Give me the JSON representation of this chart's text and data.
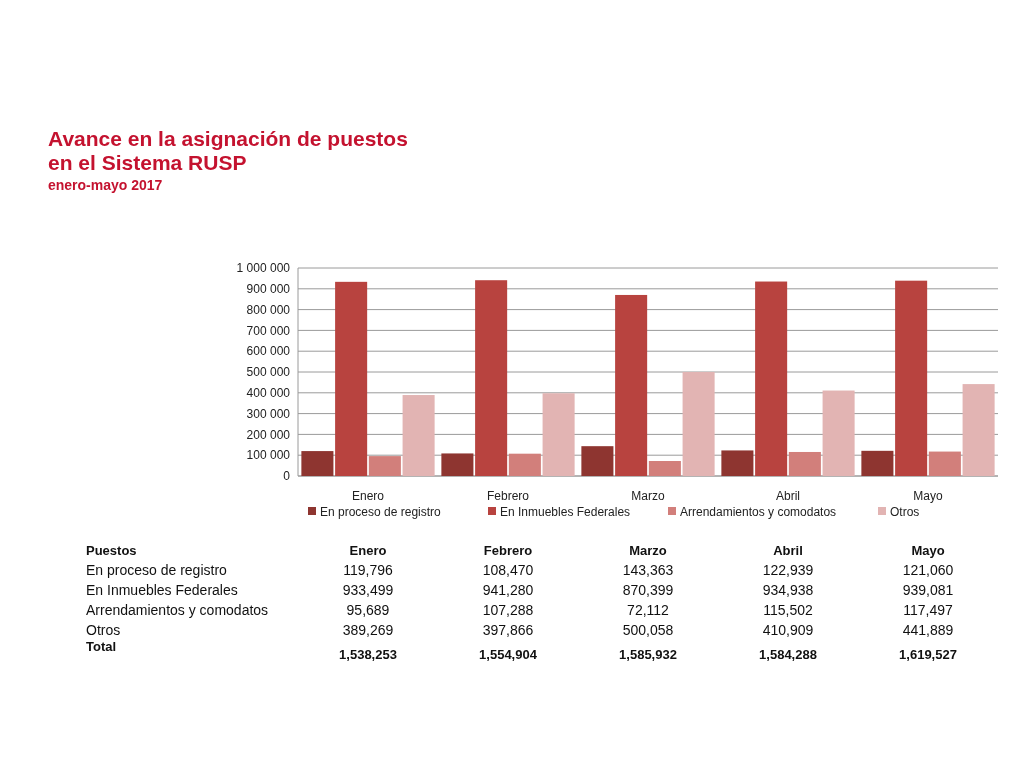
{
  "chart_data": {
    "type": "bar",
    "title": "Avance en la asignación de  puestos\nen el Sistema RUSP",
    "subtitle": "enero-mayo 2017",
    "categories": [
      "Enero",
      "Febrero",
      "Marzo",
      "Abril",
      "Mayo"
    ],
    "series": [
      {
        "name": "En proceso de registro",
        "color": "#8e3530",
        "values": [
          119796,
          108470,
          143363,
          122939,
          121060
        ],
        "value_labels": [
          "119,796",
          "108,470",
          "143,363",
          "122,939",
          "121,060"
        ]
      },
      {
        "name": "En Inmuebles Federales",
        "color": "#b8433f",
        "values": [
          933499,
          941280,
          870399,
          934938,
          939081
        ],
        "value_labels": [
          "933,499",
          "941,280",
          "870,399",
          "934,938",
          "939,081"
        ]
      },
      {
        "name": "Arrendamientos y comodatos",
        "color": "#d27f7b",
        "values": [
          95689,
          107288,
          72112,
          115502,
          117497
        ],
        "value_labels": [
          "95,689",
          "107,288",
          "72,112",
          "115,502",
          "117,497"
        ]
      },
      {
        "name": "Otros",
        "color": "#e2b4b3",
        "values": [
          389269,
          397866,
          500058,
          410909,
          441889
        ],
        "value_labels": [
          "389,269",
          "397,866",
          "500,058",
          "410,909",
          "441,889"
        ]
      }
    ],
    "annotations": [
      "Puestos",
      "Total",
      "1,538,253",
      "1,554,904",
      "1,585,932",
      "1,584,288",
      "1,619,527"
    ],
    "ylim": [
      0,
      1000000
    ],
    "yticks": [
      0,
      {
        "value": 100000,
        "label": "100 000"
      },
      {
        "value": 200000,
        "label": "200 000"
      },
      {
        "value": 300000,
        "label": "300 000"
      },
      {
        "value": 400000,
        "label": "400 000"
      },
      {
        "value": 500000,
        "label": "500 000"
      },
      {
        "value": 600000,
        "label": "600 000"
      },
      {
        "value": 700000,
        "label": "700 000"
      },
      {
        "value": 800000,
        "label": "800 000"
      },
      {
        "value": 900000,
        "label": "900 000"
      },
      {
        "value": 1000000,
        "label": "1 000 000"
      }
    ],
    "grid": "y",
    "legend": "bottom"
  }
}
